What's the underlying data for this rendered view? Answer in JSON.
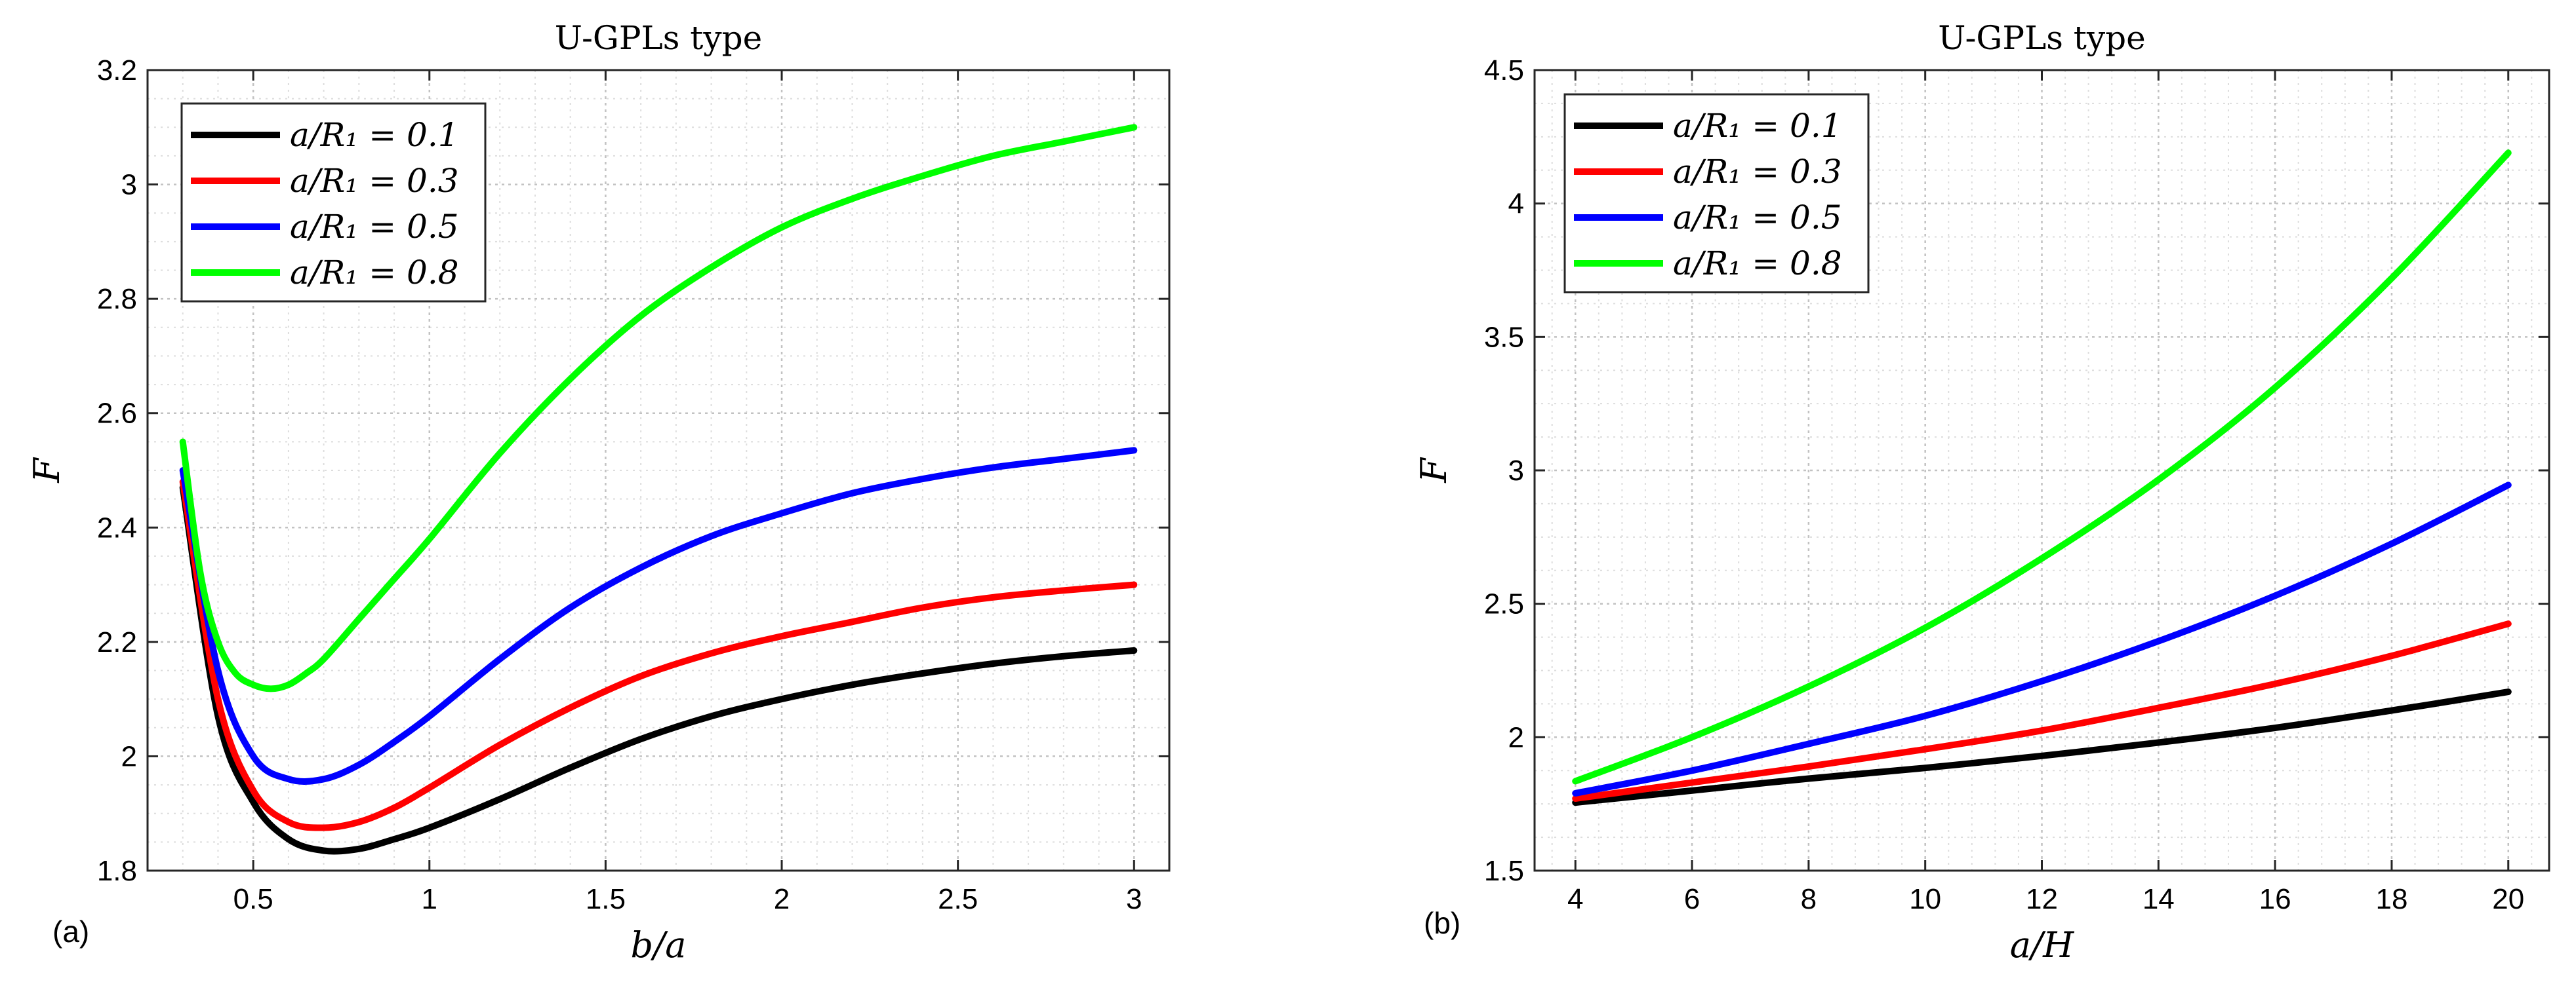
{
  "chart_data": [
    {
      "type": "line",
      "panel_label": "(a)",
      "title": "U-GPLs type",
      "xlabel": "b/a",
      "ylabel": "F",
      "xlim": [
        0.2,
        3.1
      ],
      "ylim": [
        1.8,
        3.2
      ],
      "xticks": [
        0.5,
        1,
        1.5,
        2,
        2.5,
        3
      ],
      "xtick_labels": [
        "0.5",
        "1",
        "1.5",
        "2",
        "2.5",
        "3"
      ],
      "yticks": [
        1.8,
        2.0,
        2.2,
        2.4,
        2.6,
        2.8,
        3.0,
        3.2
      ],
      "ytick_labels": [
        "1.8",
        "2",
        "2.2",
        "2.4",
        "2.6",
        "2.8",
        "3",
        "3.2"
      ],
      "grid": true,
      "minor_grid": true,
      "legend_position": "top-left",
      "series": [
        {
          "name": "a/R₁ = 0.1",
          "color": "#000000",
          "x": [
            0.3,
            0.4,
            0.5,
            0.6,
            0.7,
            0.8,
            0.9,
            1.0,
            1.2,
            1.4,
            1.6,
            1.8,
            2.0,
            2.2,
            2.4,
            2.6,
            2.8,
            3.0
          ],
          "y": [
            2.47,
            2.07,
            1.92,
            1.855,
            1.835,
            1.838,
            1.855,
            1.875,
            1.925,
            1.98,
            2.03,
            2.07,
            2.1,
            2.125,
            2.145,
            2.162,
            2.175,
            2.185
          ]
        },
        {
          "name": "a/R₁ = 0.3",
          "color": "#ff0000",
          "x": [
            0.3,
            0.4,
            0.5,
            0.6,
            0.7,
            0.8,
            0.9,
            1.0,
            1.2,
            1.4,
            1.6,
            1.8,
            2.0,
            2.2,
            2.4,
            2.6,
            2.8,
            3.0
          ],
          "y": [
            2.48,
            2.1,
            1.94,
            1.885,
            1.875,
            1.885,
            1.91,
            1.945,
            2.02,
            2.085,
            2.14,
            2.18,
            2.21,
            2.235,
            2.26,
            2.278,
            2.29,
            2.3
          ]
        },
        {
          "name": "a/R₁ = 0.5",
          "color": "#0000ff",
          "x": [
            0.3,
            0.4,
            0.5,
            0.6,
            0.7,
            0.8,
            0.9,
            1.0,
            1.2,
            1.4,
            1.6,
            1.8,
            2.0,
            2.2,
            2.4,
            2.6,
            2.8,
            3.0
          ],
          "y": [
            2.5,
            2.15,
            2.0,
            1.96,
            1.96,
            1.985,
            2.025,
            2.07,
            2.17,
            2.26,
            2.33,
            2.385,
            2.425,
            2.46,
            2.485,
            2.505,
            2.52,
            2.535
          ]
        },
        {
          "name": "a/R₁ = 0.8",
          "color": "#00ff00",
          "x": [
            0.3,
            0.35,
            0.4,
            0.45,
            0.5,
            0.55,
            0.6,
            0.65,
            0.7,
            0.8,
            0.9,
            1.0,
            1.2,
            1.4,
            1.6,
            1.8,
            2.0,
            2.2,
            2.4,
            2.6,
            2.8,
            3.0
          ],
          "y": [
            2.55,
            2.32,
            2.2,
            2.145,
            2.125,
            2.118,
            2.125,
            2.145,
            2.17,
            2.24,
            2.31,
            2.38,
            2.53,
            2.66,
            2.77,
            2.855,
            2.925,
            2.975,
            3.015,
            3.05,
            3.075,
            3.1
          ]
        }
      ]
    },
    {
      "type": "line",
      "panel_label": "(b)",
      "title": "U-GPLs type",
      "xlabel": "a/H",
      "ylabel": "F",
      "xlim": [
        3.3,
        20.7
      ],
      "ylim": [
        1.5,
        4.5
      ],
      "xticks": [
        4,
        6,
        8,
        10,
        12,
        14,
        16,
        18,
        20
      ],
      "xtick_labels": [
        "4",
        "6",
        "8",
        "10",
        "12",
        "14",
        "16",
        "18",
        "20"
      ],
      "yticks": [
        1.5,
        2.0,
        2.5,
        3.0,
        3.5,
        4.0,
        4.5
      ],
      "ytick_labels": [
        "1.5",
        "2",
        "2.5",
        "3",
        "3.5",
        "4",
        "4.5"
      ],
      "grid": true,
      "minor_grid": true,
      "legend_position": "top-left",
      "series": [
        {
          "name": "a/R₁ = 0.1",
          "color": "#000000",
          "x": [
            4,
            6,
            8,
            10,
            12,
            14,
            16,
            18,
            20
          ],
          "y": [
            1.755,
            1.8,
            1.845,
            1.885,
            1.93,
            1.98,
            2.035,
            2.1,
            2.17
          ]
        },
        {
          "name": "a/R₁ = 0.3",
          "color": "#ff0000",
          "x": [
            4,
            6,
            8,
            10,
            12,
            14,
            16,
            18,
            20
          ],
          "y": [
            1.77,
            1.83,
            1.89,
            1.955,
            2.025,
            2.11,
            2.2,
            2.305,
            2.425
          ]
        },
        {
          "name": "a/R₁ = 0.5",
          "color": "#0000ff",
          "x": [
            4,
            6,
            8,
            10,
            12,
            14,
            16,
            18,
            20
          ],
          "y": [
            1.79,
            1.875,
            1.975,
            2.08,
            2.21,
            2.36,
            2.53,
            2.725,
            2.945
          ]
        },
        {
          "name": "a/R₁ = 0.8",
          "color": "#00ff00",
          "x": [
            4,
            6,
            8,
            10,
            12,
            14,
            16,
            18,
            20
          ],
          "y": [
            1.835,
            2.0,
            2.19,
            2.41,
            2.67,
            2.965,
            3.31,
            3.72,
            4.19
          ]
        }
      ]
    }
  ]
}
